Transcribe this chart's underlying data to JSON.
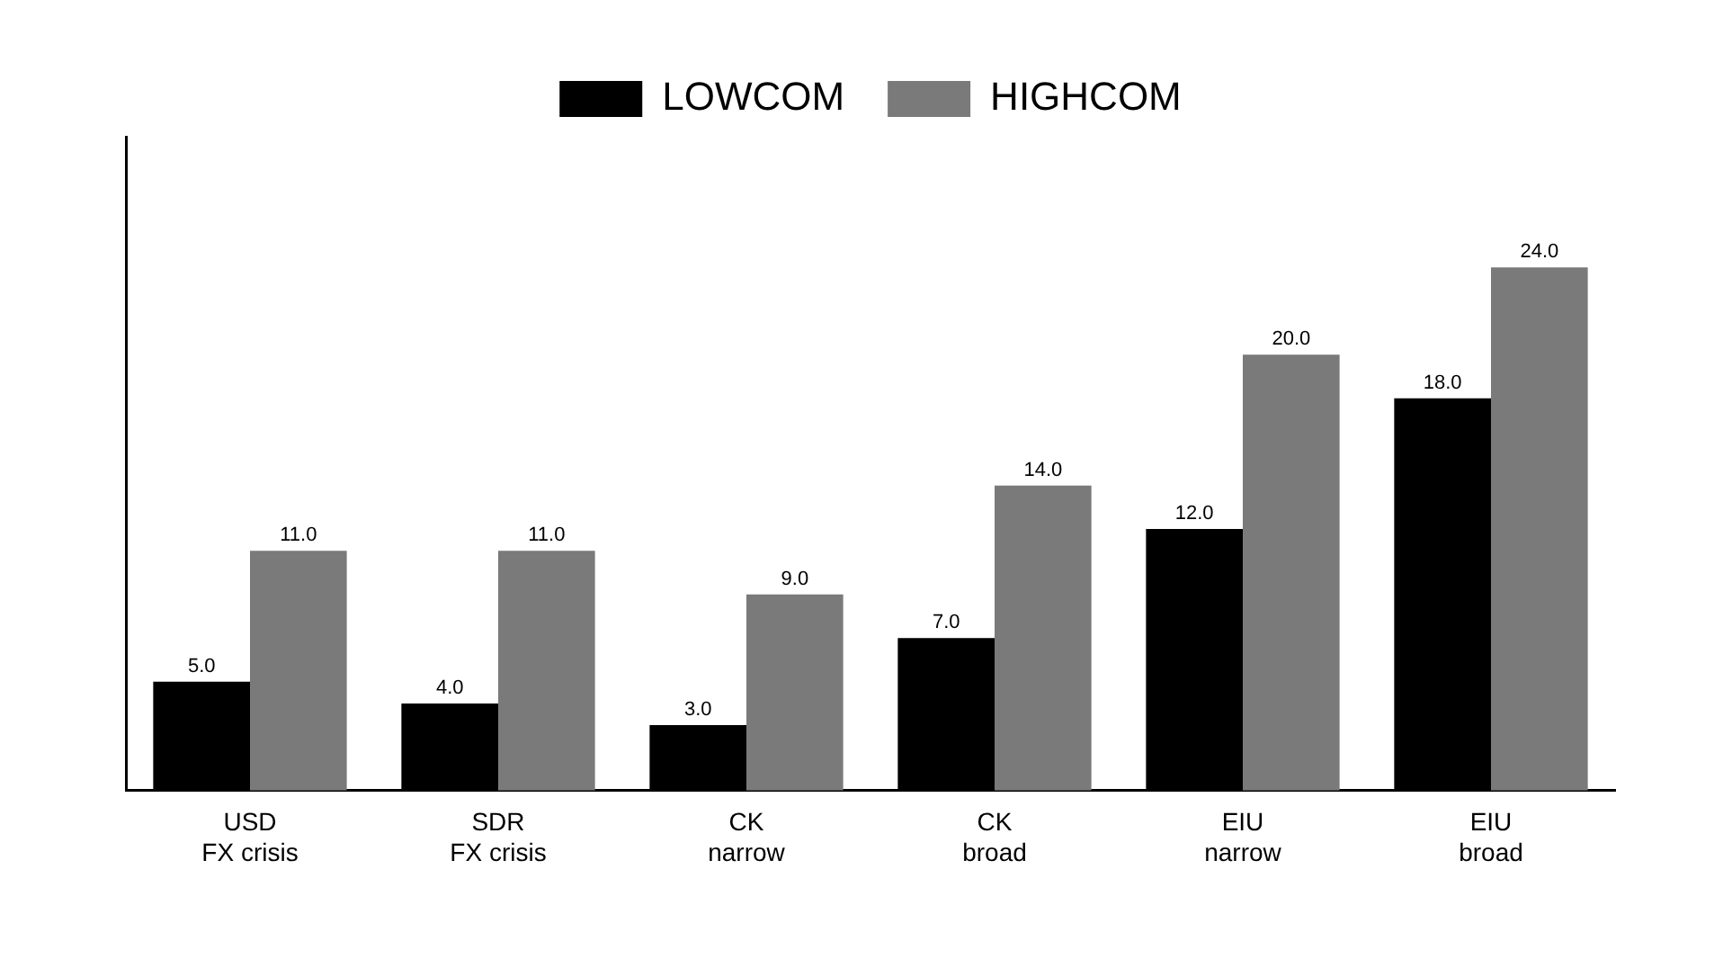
{
  "chart_data": {
    "type": "bar",
    "categories": [
      "USD\nFX crisis",
      "SDR\nFX crisis",
      "CK\nnarrow",
      "CK\nbroad",
      "EIU\nnarrow",
      "EIU\nbroad"
    ],
    "series": [
      {
        "name": "LOWCOM",
        "color": "#000000",
        "values": [
          5,
          4,
          3,
          7,
          12,
          18
        ],
        "value_labels": [
          "5.0",
          "4.0",
          "3.0",
          "7.0",
          "12.0",
          "18.0"
        ]
      },
      {
        "name": "HIGHCOM",
        "color": "#7a7a7a",
        "values": [
          11,
          11,
          9,
          14,
          20,
          24
        ],
        "value_labels": [
          "11.0",
          "11.0",
          "9.0",
          "14.0",
          "20.0",
          "24.0"
        ]
      }
    ],
    "ylim": [
      0,
      30
    ],
    "tick_labels": "x",
    "grid": false,
    "legend": "top"
  }
}
